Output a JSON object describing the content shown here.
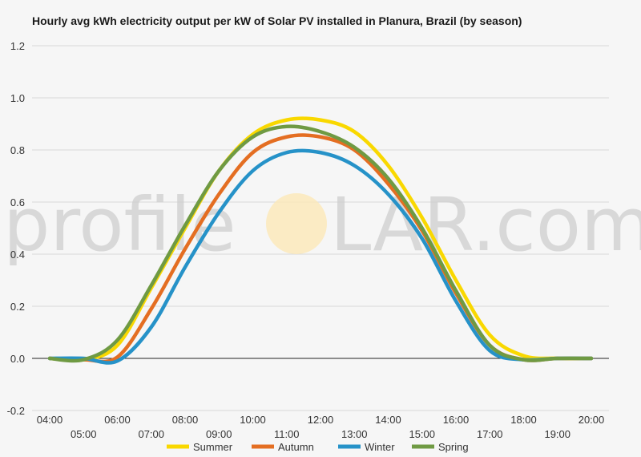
{
  "title": "Hourly avg kWh electricity output per kW of Solar PV installed in Planura, Brazil (by season)",
  "watermark": {
    "left": "profile",
    "right": "LAR.com",
    "sun_color": "#fde9b8"
  },
  "chart_data": {
    "type": "line",
    "title": "Hourly avg kWh electricity output per kW of Solar PV installed in Planura, Brazil (by season)",
    "xlabel": "",
    "ylabel": "",
    "ylim": [
      -0.2,
      1.2
    ],
    "yticks": [
      -0.2,
      0.0,
      0.2,
      0.4,
      0.6,
      0.8,
      1.0,
      1.2
    ],
    "ytick_labels": [
      "-0.2",
      "0.0",
      "0.2",
      "0.4",
      "0.6",
      "0.8",
      "1.0",
      "1.2"
    ],
    "xlim": [
      4,
      20
    ],
    "xtick_labels": [
      "04:00",
      "05:00",
      "06:00",
      "07:00",
      "08:00",
      "09:00",
      "10:00",
      "11:00",
      "12:00",
      "13:00",
      "14:00",
      "15:00",
      "16:00",
      "17:00",
      "18:00",
      "19:00",
      "20:00"
    ],
    "grid": true,
    "legend": "bottom",
    "x": [
      4,
      5,
      6,
      7,
      8,
      9,
      10,
      11,
      12,
      13,
      14,
      15,
      16,
      17,
      18,
      19,
      20
    ],
    "series": [
      {
        "name": "Summer",
        "color": "#f9d800",
        "values": [
          0.0,
          -0.005,
          0.05,
          0.27,
          0.5,
          0.72,
          0.86,
          0.915,
          0.915,
          0.87,
          0.74,
          0.54,
          0.3,
          0.09,
          0.01,
          0.0,
          0.0
        ]
      },
      {
        "name": "Autumn",
        "color": "#e46e22",
        "values": [
          0.0,
          -0.005,
          0.005,
          0.19,
          0.42,
          0.63,
          0.79,
          0.85,
          0.85,
          0.8,
          0.67,
          0.49,
          0.25,
          0.05,
          -0.005,
          0.0,
          0.0
        ]
      },
      {
        "name": "Winter",
        "color": "#2692c8",
        "values": [
          0.0,
          0.0,
          -0.01,
          0.12,
          0.35,
          0.56,
          0.72,
          0.79,
          0.79,
          0.74,
          0.63,
          0.46,
          0.22,
          0.03,
          -0.005,
          0.0,
          0.0
        ]
      },
      {
        "name": "Spring",
        "color": "#6f9a43",
        "values": [
          0.0,
          -0.005,
          0.07,
          0.28,
          0.51,
          0.72,
          0.85,
          0.89,
          0.87,
          0.81,
          0.69,
          0.5,
          0.26,
          0.05,
          -0.005,
          0.0,
          0.0
        ]
      }
    ]
  }
}
